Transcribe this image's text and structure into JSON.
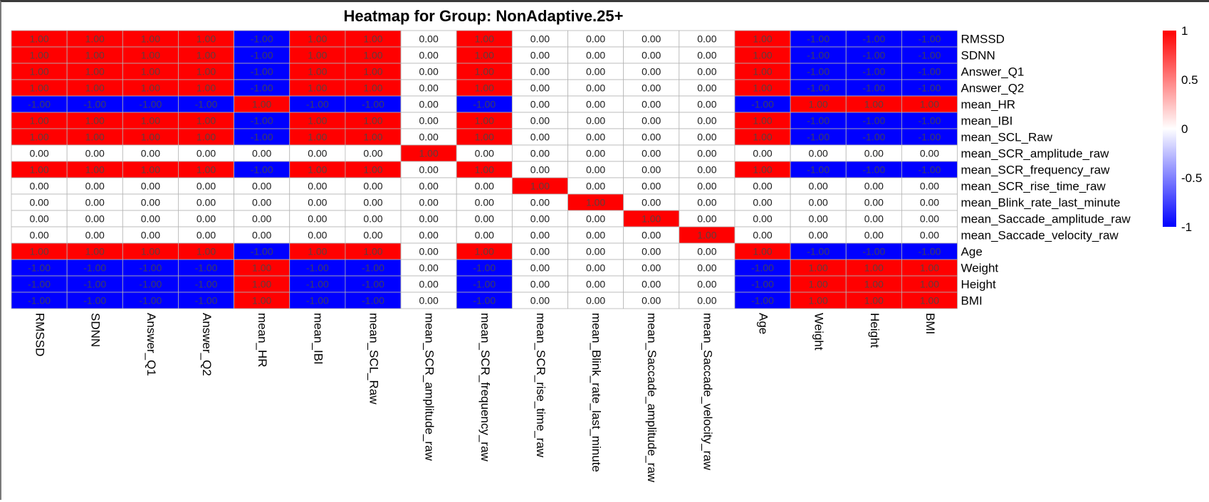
{
  "chart_data": {
    "type": "heatmap",
    "title": "Heatmap for Group: NonAdaptive.25+",
    "row_labels": [
      "RMSSD",
      "SDNN",
      "Answer_Q1",
      "Answer_Q2",
      "mean_HR",
      "mean_IBI",
      "mean_SCL_Raw",
      "mean_SCR_amplitude_raw",
      "mean_SCR_frequency_raw",
      "mean_SCR_rise_time_raw",
      "mean_Blink_rate_last_minute",
      "mean_Saccade_amplitude_raw",
      "mean_Saccade_velocity_raw",
      "Age",
      "Weight",
      "Height",
      "BMI"
    ],
    "col_labels": [
      "RMSSD",
      "SDNN",
      "Answer_Q1",
      "Answer_Q2",
      "mean_HR",
      "mean_IBI",
      "mean_SCL_Raw",
      "mean_SCR_amplitude_raw",
      "mean_SCR_frequency_raw",
      "mean_SCR_rise_time_raw",
      "mean_Blink_rate_last_minute",
      "mean_Saccade_amplitude_raw",
      "mean_Saccade_velocity_raw",
      "Age",
      "Weight",
      "Height",
      "BMI"
    ],
    "values": [
      [
        1,
        1,
        1,
        1,
        -1,
        1,
        1,
        0,
        1,
        0,
        0,
        0,
        0,
        1,
        -1,
        -1,
        -1
      ],
      [
        1,
        1,
        1,
        1,
        -1,
        1,
        1,
        0,
        1,
        0,
        0,
        0,
        0,
        1,
        -1,
        -1,
        -1
      ],
      [
        1,
        1,
        1,
        1,
        -1,
        1,
        1,
        0,
        1,
        0,
        0,
        0,
        0,
        1,
        -1,
        -1,
        -1
      ],
      [
        1,
        1,
        1,
        1,
        -1,
        1,
        1,
        0,
        1,
        0,
        0,
        0,
        0,
        1,
        -1,
        -1,
        -1
      ],
      [
        -1,
        -1,
        -1,
        -1,
        1,
        -1,
        -1,
        0,
        -1,
        0,
        0,
        0,
        0,
        -1,
        1,
        1,
        1
      ],
      [
        1,
        1,
        1,
        1,
        -1,
        1,
        1,
        0,
        1,
        0,
        0,
        0,
        0,
        1,
        -1,
        -1,
        -1
      ],
      [
        1,
        1,
        1,
        1,
        -1,
        1,
        1,
        0,
        1,
        0,
        0,
        0,
        0,
        1,
        -1,
        -1,
        -1
      ],
      [
        0,
        0,
        0,
        0,
        0,
        0,
        0,
        1,
        0,
        0,
        0,
        0,
        0,
        0,
        0,
        0,
        0
      ],
      [
        1,
        1,
        1,
        1,
        -1,
        1,
        1,
        0,
        1,
        0,
        0,
        0,
        0,
        1,
        -1,
        -1,
        -1
      ],
      [
        0,
        0,
        0,
        0,
        0,
        0,
        0,
        0,
        0,
        1,
        0,
        0,
        0,
        0,
        0,
        0,
        0
      ],
      [
        0,
        0,
        0,
        0,
        0,
        0,
        0,
        0,
        0,
        0,
        1,
        0,
        0,
        0,
        0,
        0,
        0
      ],
      [
        0,
        0,
        0,
        0,
        0,
        0,
        0,
        0,
        0,
        0,
        0,
        1,
        0,
        0,
        0,
        0,
        0
      ],
      [
        0,
        0,
        0,
        0,
        0,
        0,
        0,
        0,
        0,
        0,
        0,
        0,
        1,
        0,
        0,
        0,
        0
      ],
      [
        1,
        1,
        1,
        1,
        -1,
        1,
        1,
        0,
        1,
        0,
        0,
        0,
        0,
        1,
        -1,
        -1,
        -1
      ],
      [
        -1,
        -1,
        -1,
        -1,
        1,
        -1,
        -1,
        0,
        -1,
        0,
        0,
        0,
        0,
        -1,
        1,
        1,
        1
      ],
      [
        -1,
        -1,
        -1,
        -1,
        1,
        -1,
        -1,
        0,
        -1,
        0,
        0,
        0,
        0,
        -1,
        1,
        1,
        1
      ],
      [
        -1,
        -1,
        -1,
        -1,
        1,
        -1,
        -1,
        0,
        -1,
        0,
        0,
        0,
        0,
        -1,
        1,
        1,
        1
      ]
    ],
    "value_format": "0.00",
    "color_scale": {
      "min": -1,
      "mid": 0,
      "max": 1,
      "low_color": "#0000ff",
      "mid_color": "#ffffff",
      "high_color": "#ff0000"
    },
    "legend_ticks": [
      1,
      0.5,
      0,
      -0.5,
      -1
    ],
    "legend_tick_labels": [
      "1",
      "0.5",
      "0",
      "-0.5",
      "-1"
    ],
    "legend_placement": "right",
    "grid": true
  }
}
